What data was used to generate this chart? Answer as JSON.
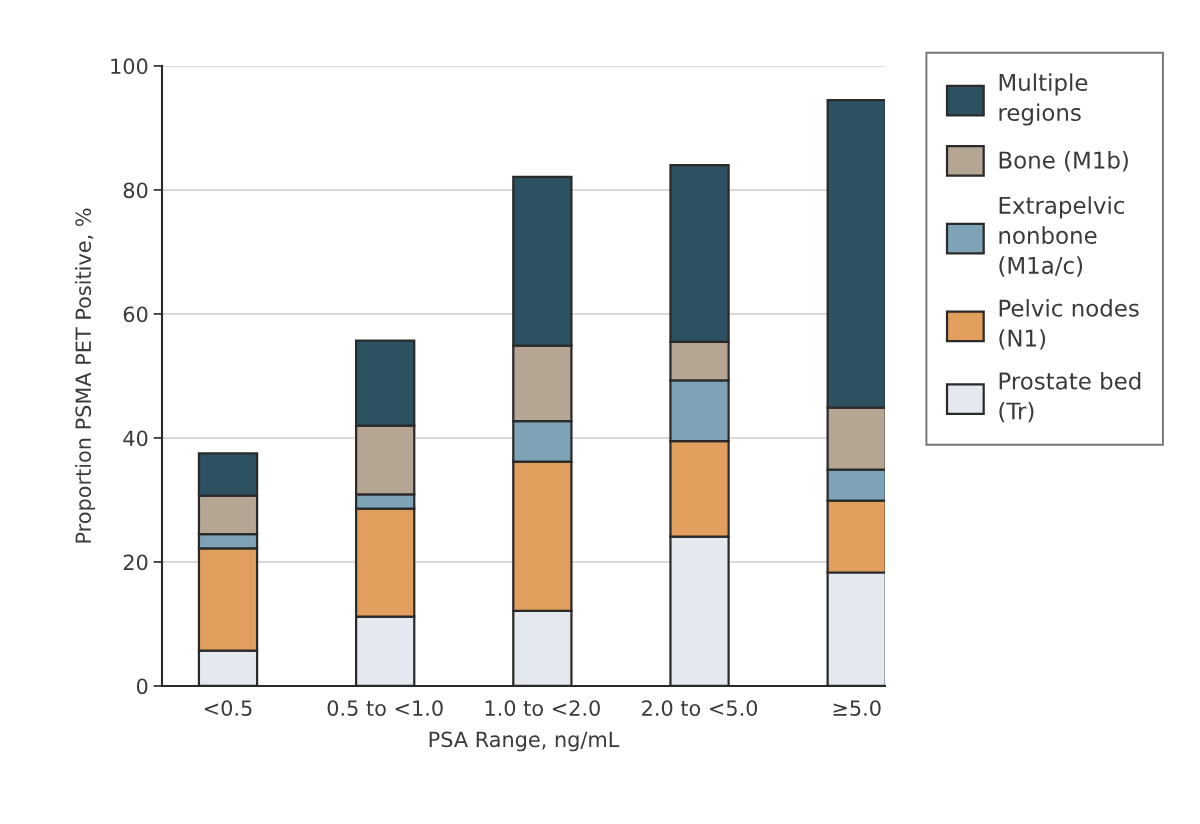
{
  "chart_data": {
    "type": "bar",
    "stacked": true,
    "xlabel": "PSA Range, ng/mL",
    "ylabel": "Proportion PSMA PET Positive, %",
    "categories": [
      "<0.5",
      "0.5 to <1.0",
      "1.0 to <2.0",
      "2.0 to <5.0",
      "≥5.0"
    ],
    "series": [
      {
        "name": "Prostate bed\n(Tr)",
        "color": "#e3e9ef",
        "values": [
          5.7,
          11.2,
          12.1,
          24.1,
          18.3
        ]
      },
      {
        "name": "Pelvic nodes\n(N1)",
        "color": "#e19e5c",
        "values": [
          16.5,
          17.4,
          24.1,
          15.4,
          11.6
        ]
      },
      {
        "name": "Extrapelvic\nnonbone\n(M1a/c)",
        "color": "#7fa3b6",
        "values": [
          2.3,
          2.3,
          6.5,
          9.8,
          5.0
        ]
      },
      {
        "name": "Bone (M1b)",
        "color": "#b4a692",
        "values": [
          6.2,
          11.1,
          12.2,
          6.2,
          10.0
        ]
      },
      {
        "name": "Multiple\nregions",
        "color": "#2c5160",
        "values": [
          6.8,
          13.7,
          27.2,
          28.5,
          49.6
        ]
      }
    ],
    "ylim": [
      0,
      100
    ],
    "yticks": [
      0,
      20,
      40,
      60,
      80,
      100
    ],
    "grid": "y",
    "legend": "right"
  }
}
